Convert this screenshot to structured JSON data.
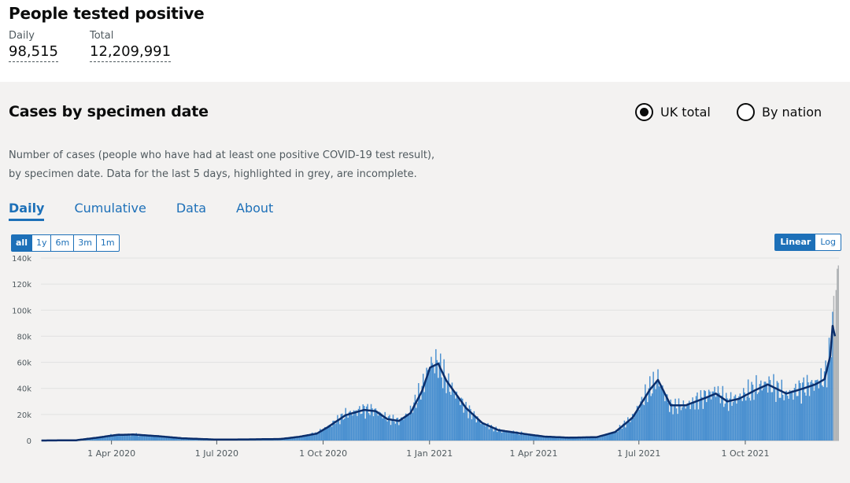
{
  "header": {
    "title": "People tested positive",
    "daily_label": "Daily",
    "daily_value": "98,515",
    "total_label": "Total",
    "total_value": "12,209,991"
  },
  "card": {
    "title": "Cases by specimen date",
    "radio_options": [
      "UK total",
      "By nation"
    ],
    "radio_selected": "UK total",
    "description_line1": "Number of cases (people who have had at least one positive COVID-19 test result),",
    "description_line2": "by specimen date. Data for the last 5 days, highlighted in grey, are incomplete.",
    "tabs": [
      "Daily",
      "Cumulative",
      "Data",
      "About"
    ],
    "active_tab": "Daily",
    "range_buttons": [
      "all",
      "1y",
      "6m",
      "3m",
      "1m"
    ],
    "range_selected": "all",
    "scale_buttons": [
      "Linear",
      "Log"
    ],
    "scale_selected": "Linear"
  },
  "colors": {
    "bar": "#4a90d0",
    "bar_incomplete": "#b1b4b6",
    "average_line": "#0b2e6b",
    "link": "#1d70b8"
  },
  "chart_data": {
    "type": "bar",
    "y_ticks": [
      "0",
      "20k",
      "40k",
      "60k",
      "80k",
      "100k",
      "120k",
      "140k"
    ],
    "ylim": [
      0,
      140000
    ],
    "x_ticks": [
      {
        "label": "1 Apr 2020",
        "date": "2020-04-01"
      },
      {
        "label": "1 Jul 2020",
        "date": "2020-07-01"
      },
      {
        "label": "1 Oct 2020",
        "date": "2020-10-01"
      },
      {
        "label": "1 Jan 2021",
        "date": "2021-01-01"
      },
      {
        "label": "1 Apr 2021",
        "date": "2021-04-01"
      },
      {
        "label": "1 Jul 2021",
        "date": "2021-07-01"
      },
      {
        "label": "1 Oct 2021",
        "date": "2021-10-01"
      }
    ],
    "xlim": [
      "2020-01-31",
      "2021-12-20"
    ],
    "incomplete_days": 5,
    "series": [
      {
        "values": [
          [
            "2020-01-31",
            0
          ],
          [
            "2020-03-01",
            200
          ],
          [
            "2020-03-20",
            2500
          ],
          [
            "2020-04-05",
            4500
          ],
          [
            "2020-04-20",
            4700
          ],
          [
            "2020-05-10",
            3500
          ],
          [
            "2020-06-01",
            1800
          ],
          [
            "2020-07-01",
            700
          ],
          [
            "2020-08-01",
            900
          ],
          [
            "2020-08-25",
            1200
          ],
          [
            "2020-09-10",
            3000
          ],
          [
            "2020-09-25",
            5500
          ],
          [
            "2020-10-05",
            11000
          ],
          [
            "2020-10-20",
            20000
          ],
          [
            "2020-11-05",
            24000
          ],
          [
            "2020-11-15",
            23000
          ],
          [
            "2020-11-25",
            17000
          ],
          [
            "2020-12-05",
            15000
          ],
          [
            "2020-12-15",
            22000
          ],
          [
            "2020-12-25",
            40000
          ],
          [
            "2021-01-01",
            58000
          ],
          [
            "2021-01-08",
            60000
          ],
          [
            "2021-01-15",
            45000
          ],
          [
            "2021-02-01",
            25000
          ],
          [
            "2021-02-15",
            13000
          ],
          [
            "2021-03-01",
            8000
          ],
          [
            "2021-03-20",
            5500
          ],
          [
            "2021-04-10",
            3000
          ],
          [
            "2021-05-01",
            2200
          ],
          [
            "2021-05-25",
            2500
          ],
          [
            "2021-06-10",
            6500
          ],
          [
            "2021-06-25",
            18000
          ],
          [
            "2021-07-10",
            40000
          ],
          [
            "2021-07-17",
            47000
          ],
          [
            "2021-07-28",
            26000
          ],
          [
            "2021-08-10",
            27000
          ],
          [
            "2021-08-25",
            33000
          ],
          [
            "2021-09-05",
            38000
          ],
          [
            "2021-09-15",
            30000
          ],
          [
            "2021-09-25",
            33000
          ],
          [
            "2021-10-10",
            40000
          ],
          [
            "2021-10-20",
            44000
          ],
          [
            "2021-11-05",
            35000
          ],
          [
            "2021-11-20",
            41000
          ],
          [
            "2021-11-30",
            44000
          ],
          [
            "2021-12-08",
            48000
          ],
          [
            "2021-12-13",
            68000
          ],
          [
            "2021-12-15",
            88000
          ],
          [
            "2021-12-20",
            130000
          ]
        ]
      },
      {
        "values": [
          [
            "2020-01-31",
            0
          ],
          [
            "2020-03-01",
            200
          ],
          [
            "2020-03-20",
            2300
          ],
          [
            "2020-04-05",
            4300
          ],
          [
            "2020-04-20",
            4600
          ],
          [
            "2020-05-10",
            3400
          ],
          [
            "2020-06-01",
            1700
          ],
          [
            "2020-07-01",
            700
          ],
          [
            "2020-08-01",
            900
          ],
          [
            "2020-08-25",
            1200
          ],
          [
            "2020-09-10",
            2900
          ],
          [
            "2020-09-25",
            5300
          ],
          [
            "2020-10-05",
            10500
          ],
          [
            "2020-10-20",
            19500
          ],
          [
            "2020-11-05",
            23500
          ],
          [
            "2020-11-15",
            22500
          ],
          [
            "2020-11-25",
            16500
          ],
          [
            "2020-12-05",
            15000
          ],
          [
            "2020-12-15",
            21000
          ],
          [
            "2020-12-25",
            38000
          ],
          [
            "2021-01-01",
            56000
          ],
          [
            "2021-01-08",
            59000
          ],
          [
            "2021-01-15",
            46000
          ],
          [
            "2021-02-01",
            25000
          ],
          [
            "2021-02-15",
            13500
          ],
          [
            "2021-03-01",
            8000
          ],
          [
            "2021-03-20",
            5500
          ],
          [
            "2021-04-10",
            3000
          ],
          [
            "2021-05-01",
            2200
          ],
          [
            "2021-05-25",
            2600
          ],
          [
            "2021-06-10",
            6500
          ],
          [
            "2021-06-25",
            17500
          ],
          [
            "2021-07-10",
            39000
          ],
          [
            "2021-07-17",
            46500
          ],
          [
            "2021-07-28",
            27000
          ],
          [
            "2021-08-10",
            27000
          ],
          [
            "2021-08-25",
            32000
          ],
          [
            "2021-09-05",
            36000
          ],
          [
            "2021-09-15",
            30000
          ],
          [
            "2021-09-25",
            32000
          ],
          [
            "2021-10-10",
            39000
          ],
          [
            "2021-10-20",
            43000
          ],
          [
            "2021-11-05",
            36000
          ],
          [
            "2021-11-20",
            40000
          ],
          [
            "2021-11-30",
            43000
          ],
          [
            "2021-12-08",
            47000
          ],
          [
            "2021-12-13",
            65000
          ],
          [
            "2021-12-15",
            88000
          ],
          [
            "2021-12-17",
            80000
          ]
        ]
      }
    ]
  }
}
